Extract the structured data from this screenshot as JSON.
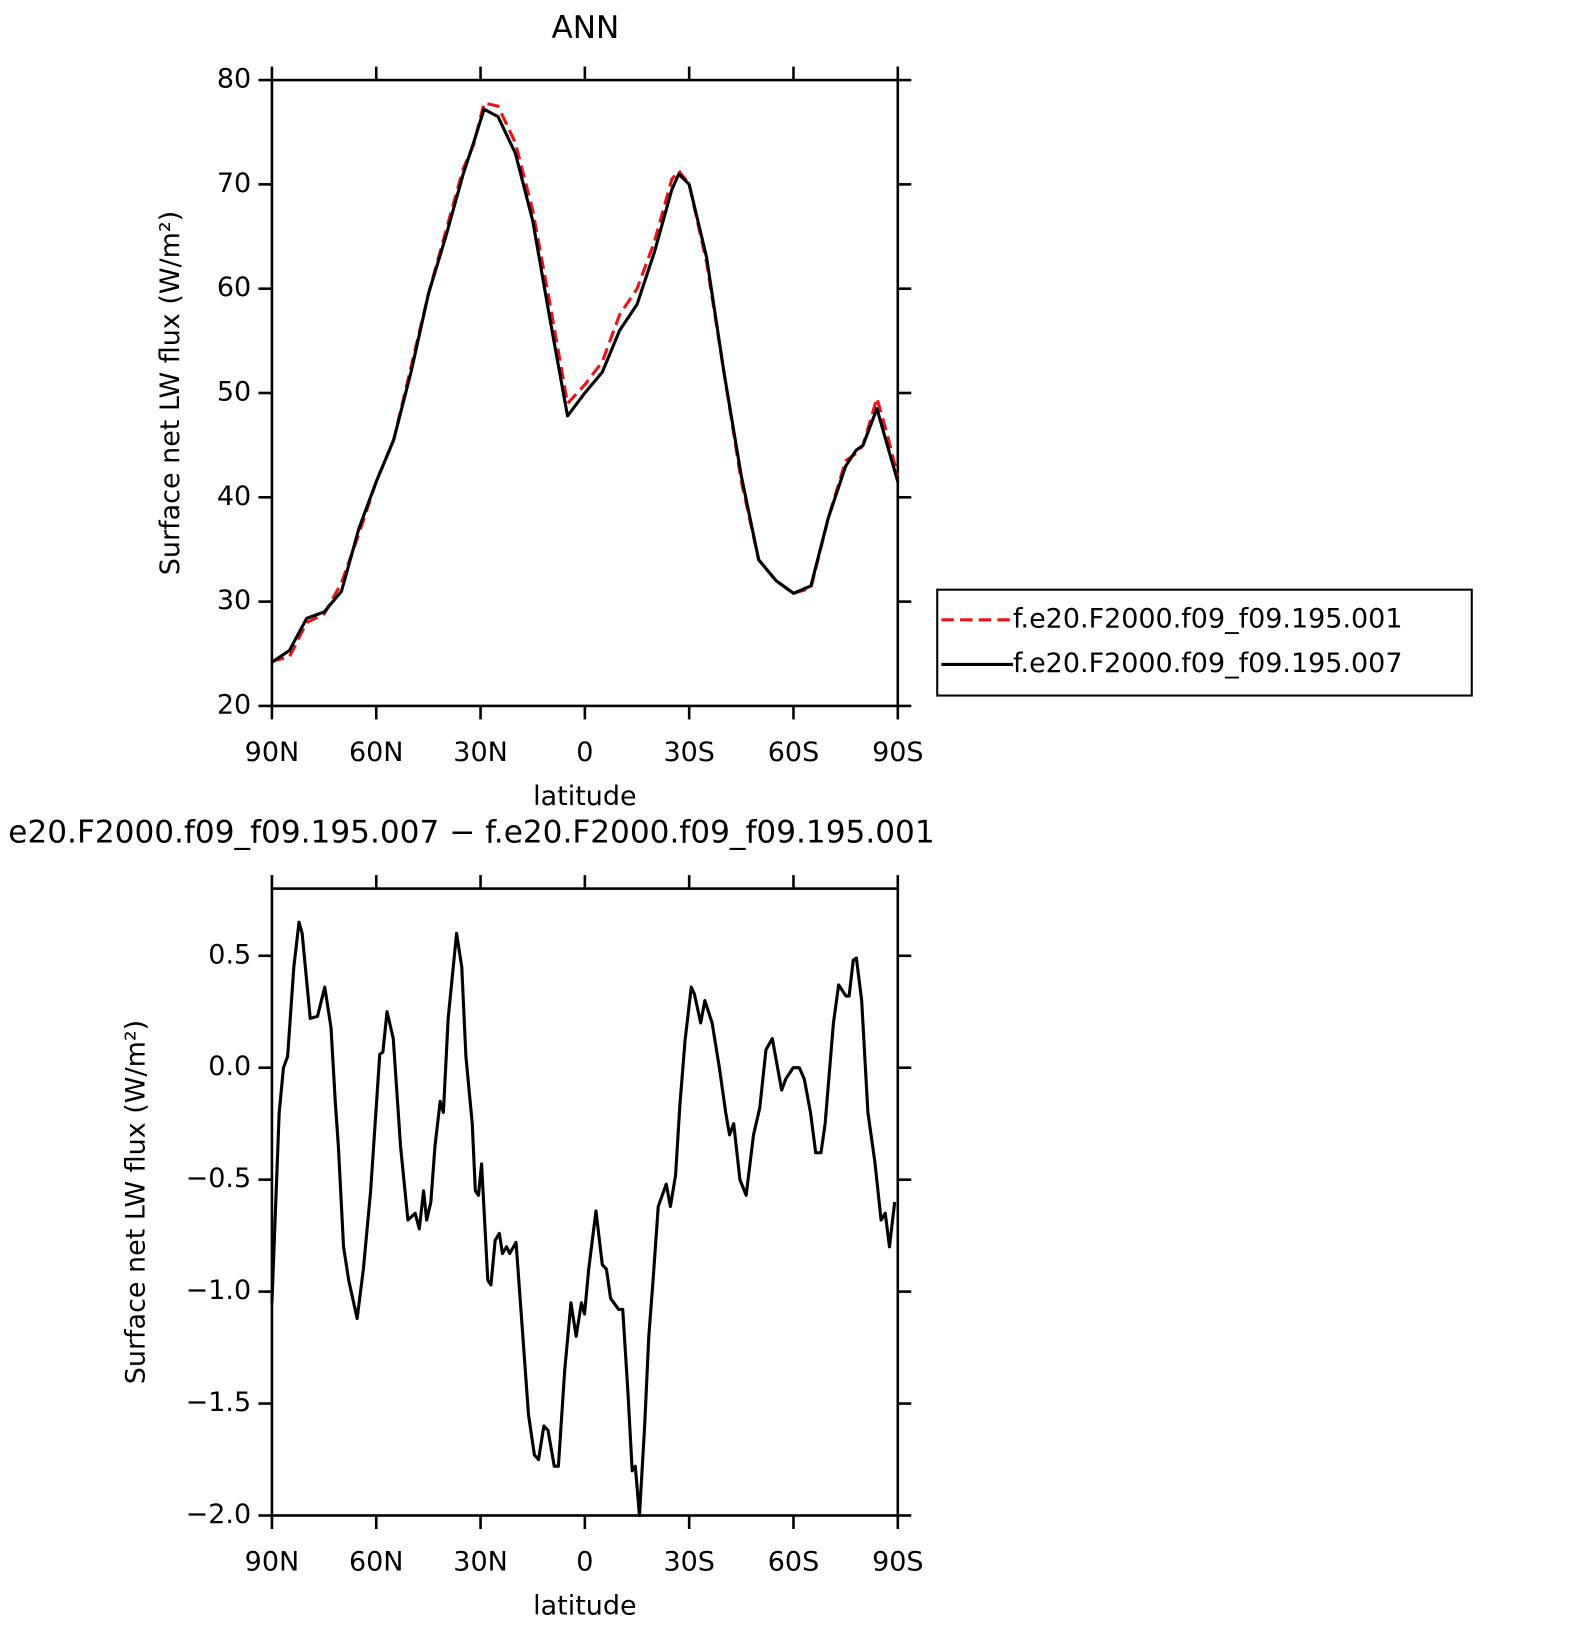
{
  "chart_data": [
    {
      "type": "line",
      "title": "ANN",
      "xlabel": "latitude",
      "ylabel": "Surface net LW flux (W/m²)",
      "x": [
        90,
        85,
        80,
        75,
        70,
        65,
        60,
        55,
        50,
        45,
        40,
        35,
        32,
        29,
        25,
        20,
        15,
        10,
        5,
        0,
        -5,
        -10,
        -15,
        -20,
        -25,
        -27,
        -30,
        -35,
        -40,
        -45,
        -50,
        -55,
        -60,
        -65,
        -70,
        -75,
        -78,
        -80,
        -84,
        -87,
        -90
      ],
      "series": [
        {
          "name": "f.e20.F2000.f09_f09.195.001",
          "color": "#e8141b",
          "linestyle": "dashed",
          "values": [
            24.3,
            24.7,
            28,
            28.8,
            31.8,
            36.5,
            41.5,
            45.5,
            52.5,
            59.5,
            65.5,
            71.5,
            73.8,
            77.8,
            77.5,
            74,
            67.5,
            58.5,
            49,
            50.8,
            53,
            57.5,
            60,
            64.5,
            70.5,
            71.3,
            70,
            62.5,
            52,
            41.5,
            34,
            32,
            30.8,
            31.3,
            38,
            43.5,
            44.2,
            45,
            49.5,
            46,
            42
          ]
        },
        {
          "name": "f.e20.F2000.f09_f09.195.007",
          "color": "#000000",
          "linestyle": "solid",
          "values": [
            24.2,
            25.3,
            28.4,
            29,
            31,
            37,
            41.5,
            45.5,
            52,
            59.5,
            65,
            71,
            74,
            77.2,
            76.5,
            73,
            66.5,
            57,
            47.8,
            50,
            52,
            56,
            58.5,
            63.5,
            69.5,
            71,
            70,
            63,
            52,
            42,
            34,
            32,
            30.8,
            31.5,
            38,
            43,
            44.5,
            45,
            48.5,
            45,
            41.5
          ]
        }
      ],
      "xlim": [
        90,
        -90
      ],
      "xticks": [
        {
          "value": 90,
          "label": "90N"
        },
        {
          "value": 60,
          "label": "60N"
        },
        {
          "value": 30,
          "label": "30N"
        },
        0,
        {
          "value": -30,
          "label": "30S"
        },
        {
          "value": -60,
          "label": "60S"
        },
        {
          "value": -90,
          "label": "90S"
        }
      ],
      "ylim": [
        20,
        80
      ],
      "yticks": [
        20,
        30,
        40,
        50,
        60,
        70,
        80
      ],
      "legend": "right"
    },
    {
      "type": "line",
      "title": "e20.F2000.f09_f09.195.007 − f.e20.F2000.f09_f09.195.001",
      "xlabel": "latitude",
      "ylabel": "Surface net LW flux (W/m²)",
      "x": [
        90,
        87.9,
        86.7,
        85.5,
        83.7,
        82.2,
        81.3,
        79.0,
        76.9,
        74.8,
        73.0,
        71.8,
        70.9,
        69.4,
        67.9,
        65.5,
        63.7,
        61.6,
        59.0,
        58.1,
        56.9,
        55.1,
        53.0,
        50.9,
        48.8,
        47.6,
        46.4,
        45.5,
        44.3,
        43.1,
        41.6,
        40.7,
        39.3,
        36.9,
        35.4,
        34.2,
        32.4,
        31.5,
        30.6,
        29.7,
        27.9,
        27.0,
        25.8,
        24.6,
        23.7,
        22.5,
        21.6,
        19.8,
        18.3,
        16.2,
        14.5,
        13.3,
        11.8,
        10.6,
        8.8,
        7.6,
        5.8,
        4.0,
        2.5,
        1.0,
        0.1,
        -1.1,
        -3.2,
        -5.0,
        -6.2,
        -7.4,
        -9.7,
        -10.9,
        -12.4,
        -13.6,
        -14.5,
        -15.7,
        -17.2,
        -18.4,
        -19.6,
        -21.1,
        -23.4,
        -24.6,
        -26.1,
        -27.3,
        -28.8,
        -30.6,
        -31.5,
        -33.3,
        -34.5,
        -36.6,
        -38.7,
        -40.5,
        -41.6,
        -42.8,
        -44.6,
        -46.4,
        -48.5,
        -50.3,
        -52.1,
        -53.9,
        -56.6,
        -57.8,
        -59.9,
        -61.7,
        -63.1,
        -64.9,
        -66.4,
        -67.9,
        -69.1,
        -71.5,
        -73.0,
        -75.1,
        -76.0,
        -77.2,
        -78.1,
        -79.6,
        -81.4,
        -83.4,
        -85.2,
        -86.4,
        -87.6,
        -89.1
      ],
      "series": [
        {
          "color": "#000000",
          "linestyle": "solid",
          "values": [
            -1.05,
            -0.2,
            0,
            0.05,
            0.45,
            0.65,
            0.6,
            0.22,
            0.23,
            0.36,
            0.18,
            -0.15,
            -0.35,
            -0.8,
            -0.95,
            -1.12,
            -0.9,
            -0.55,
            0.06,
            0.07,
            0.25,
            0.13,
            -0.35,
            -0.68,
            -0.65,
            -0.72,
            -0.55,
            -0.68,
            -0.6,
            -0.35,
            -0.15,
            -0.2,
            0.22,
            0.6,
            0.45,
            0.05,
            -0.25,
            -0.55,
            -0.57,
            -0.43,
            -0.95,
            -0.97,
            -0.77,
            -0.74,
            -0.83,
            -0.8,
            -0.83,
            -0.78,
            -1.1,
            -1.55,
            -1.73,
            -1.75,
            -1.6,
            -1.62,
            -1.78,
            -1.78,
            -1.35,
            -1.05,
            -1.2,
            -1.05,
            -1.1,
            -0.9,
            -0.64,
            -0.88,
            -0.9,
            -1.03,
            -1.08,
            -1.08,
            -1.45,
            -1.8,
            -1.78,
            -2.0,
            -1.6,
            -1.2,
            -0.95,
            -0.62,
            -0.52,
            -0.62,
            -0.48,
            -0.17,
            0.12,
            0.36,
            0.33,
            0.2,
            0.3,
            0.2,
            0.0,
            -0.2,
            -0.3,
            -0.25,
            -0.5,
            -0.57,
            -0.3,
            -0.18,
            0.08,
            0.13,
            -0.1,
            -0.05,
            0.0,
            0.0,
            -0.05,
            -0.2,
            -0.38,
            -0.38,
            -0.25,
            0.2,
            0.37,
            0.32,
            0.32,
            0.48,
            0.49,
            0.3,
            -0.2,
            -0.42,
            -0.68,
            -0.65,
            -0.8,
            -0.6
          ]
        }
      ],
      "xlim": [
        90,
        -90
      ],
      "xticks": [
        {
          "value": 90,
          "label": "90N"
        },
        {
          "value": 60,
          "label": "60N"
        },
        {
          "value": 30,
          "label": "30N"
        },
        0,
        {
          "value": -30,
          "label": "30S"
        },
        {
          "value": -60,
          "label": "60S"
        },
        {
          "value": -90,
          "label": "90S"
        }
      ],
      "ylim": [
        -2.0,
        0.8
      ],
      "yticks": [
        {
          "value": -2.0,
          "label": "−2.0"
        },
        {
          "value": -1.5,
          "label": "−1.5"
        },
        {
          "value": -1.0,
          "label": "−1.0"
        },
        {
          "value": -0.5,
          "label": "−0.5"
        },
        {
          "value": 0,
          "label": "0.0"
        },
        0.5
      ]
    }
  ]
}
